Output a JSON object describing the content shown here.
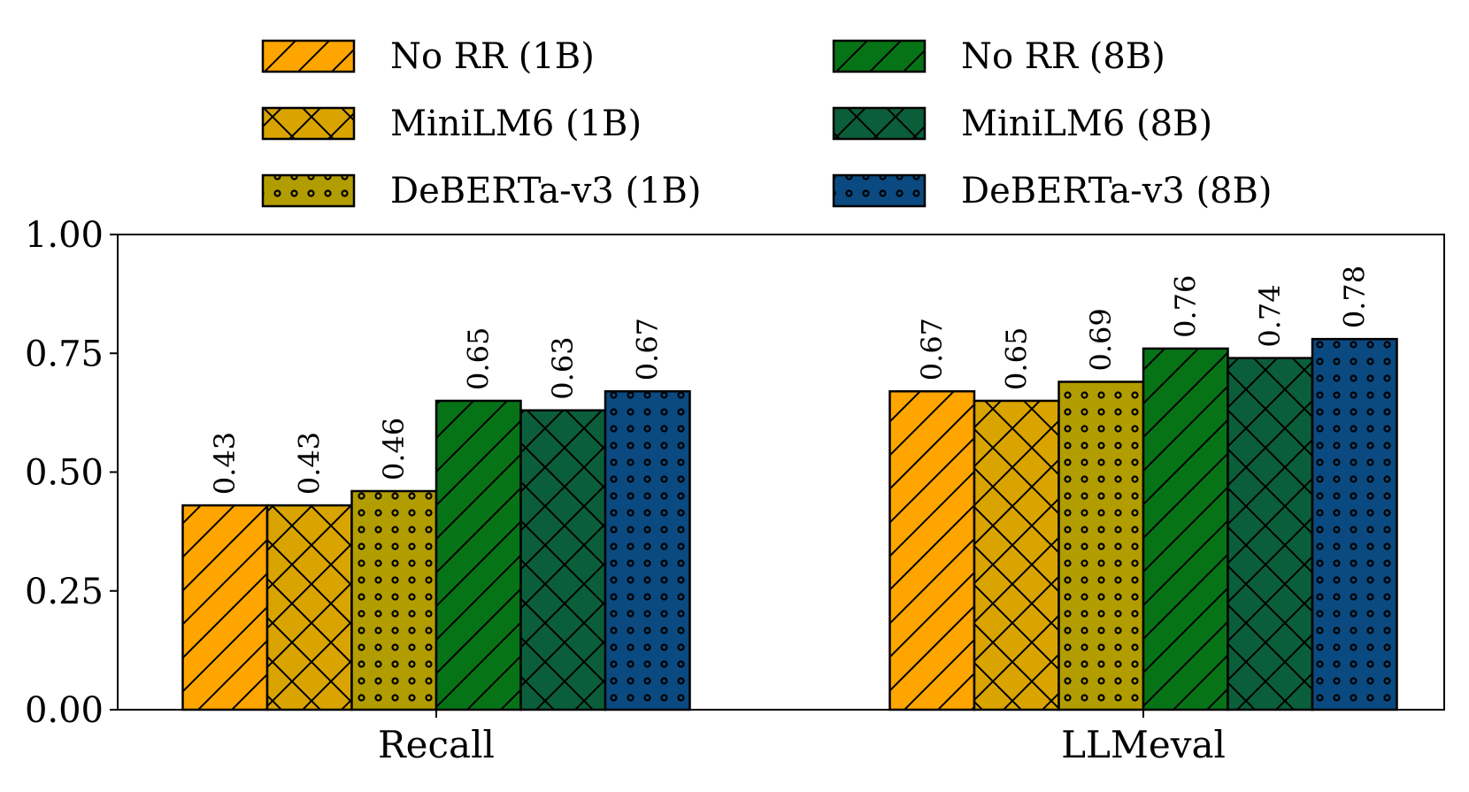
{
  "chart_data": {
    "type": "bar",
    "title": "",
    "xlabel": "",
    "ylabel": "",
    "categories": [
      "Recall",
      "LLMeval"
    ],
    "ylim": [
      0,
      1
    ],
    "yticks": [
      "0.00",
      "0.25",
      "0.50",
      "0.75",
      "1.00"
    ],
    "ytick_values": [
      0,
      0.25,
      0.5,
      0.75,
      1.0
    ],
    "grid": false,
    "legend_position": "top",
    "series": [
      {
        "name": "No RR (1B)",
        "values": [
          0.43,
          0.67
        ],
        "labels": [
          "0.43",
          "0.67"
        ],
        "color": "#FFA500",
        "hatch": "diagonal"
      },
      {
        "name": "MiniLM6 (1B)",
        "values": [
          0.43,
          0.65
        ],
        "labels": [
          "0.43",
          "0.65"
        ],
        "color": "#D9A400",
        "hatch": "cross"
      },
      {
        "name": "DeBERTa-v3 (1B)",
        "values": [
          0.46,
          0.69
        ],
        "labels": [
          "0.46",
          "0.69"
        ],
        "color": "#B29D00",
        "hatch": "dots"
      },
      {
        "name": "No RR (8B)",
        "values": [
          0.65,
          0.76
        ],
        "labels": [
          "0.65",
          "0.76"
        ],
        "color": "#077317",
        "hatch": "diagonal"
      },
      {
        "name": "MiniLM6 (8B)",
        "values": [
          0.63,
          0.74
        ],
        "labels": [
          "0.63",
          "0.74"
        ],
        "color": "#0B5E3A",
        "hatch": "cross"
      },
      {
        "name": "DeBERTa-v3 (8B)",
        "values": [
          0.67,
          0.78
        ],
        "labels": [
          "0.67",
          "0.78"
        ],
        "color": "#0A4A80",
        "hatch": "dots"
      }
    ]
  }
}
